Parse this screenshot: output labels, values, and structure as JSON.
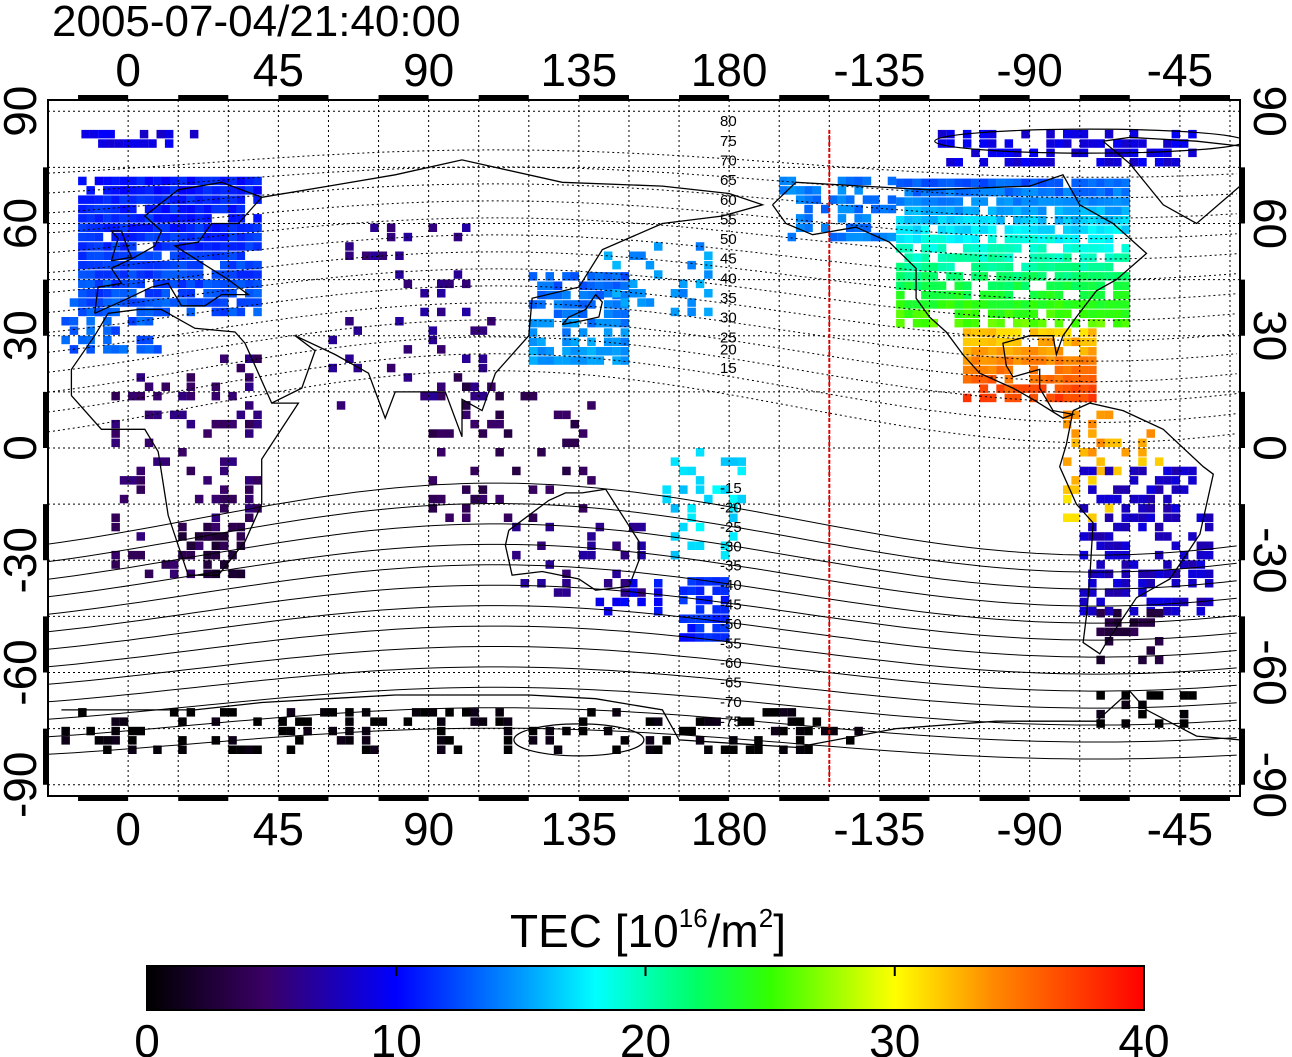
{
  "title": "2005-07-04/21:40:00",
  "map": {
    "lon_ticks": [
      "0",
      "45",
      "90",
      "135",
      "180",
      "-135",
      "-90",
      "-45"
    ],
    "lat_ticks": [
      "90",
      "60",
      "30",
      "0",
      "-30",
      "-60",
      "-90"
    ],
    "lon_tick_values": [
      0,
      45,
      90,
      135,
      180,
      225,
      270,
      315
    ],
    "lat_tick_values": [
      90,
      60,
      30,
      0,
      -30,
      -60,
      -90
    ],
    "lon_range": [
      -24,
      333
    ],
    "lat_range": [
      -93,
      93
    ],
    "terminator_longitude": -150,
    "terminator_color": "#e00000",
    "magnetic_latitude_labels": [
      "80",
      "75",
      "70",
      "65",
      "60",
      "55",
      "50",
      "45",
      "40",
      "35",
      "30",
      "25",
      "20",
      "15",
      "-15",
      "-20",
      "-25",
      "-30",
      "-35",
      "-40",
      "-45",
      "-50",
      "-55",
      "-60",
      "-65",
      "-70",
      "-75"
    ]
  },
  "colorbar": {
    "label_main": "TEC  [10",
    "label_sup1": "16",
    "label_mid": "/m",
    "label_sup2": "2",
    "label_end": "]",
    "tick_labels": [
      "0",
      "10",
      "20",
      "30",
      "40"
    ],
    "tick_values": [
      0,
      10,
      20,
      30,
      40
    ],
    "range": [
      0,
      40
    ],
    "colors": [
      "#000000",
      "#3a0066",
      "#0000ff",
      "#00ffff",
      "#00ff00",
      "#ffff00",
      "#ff7f00",
      "#ff0000"
    ]
  }
}
